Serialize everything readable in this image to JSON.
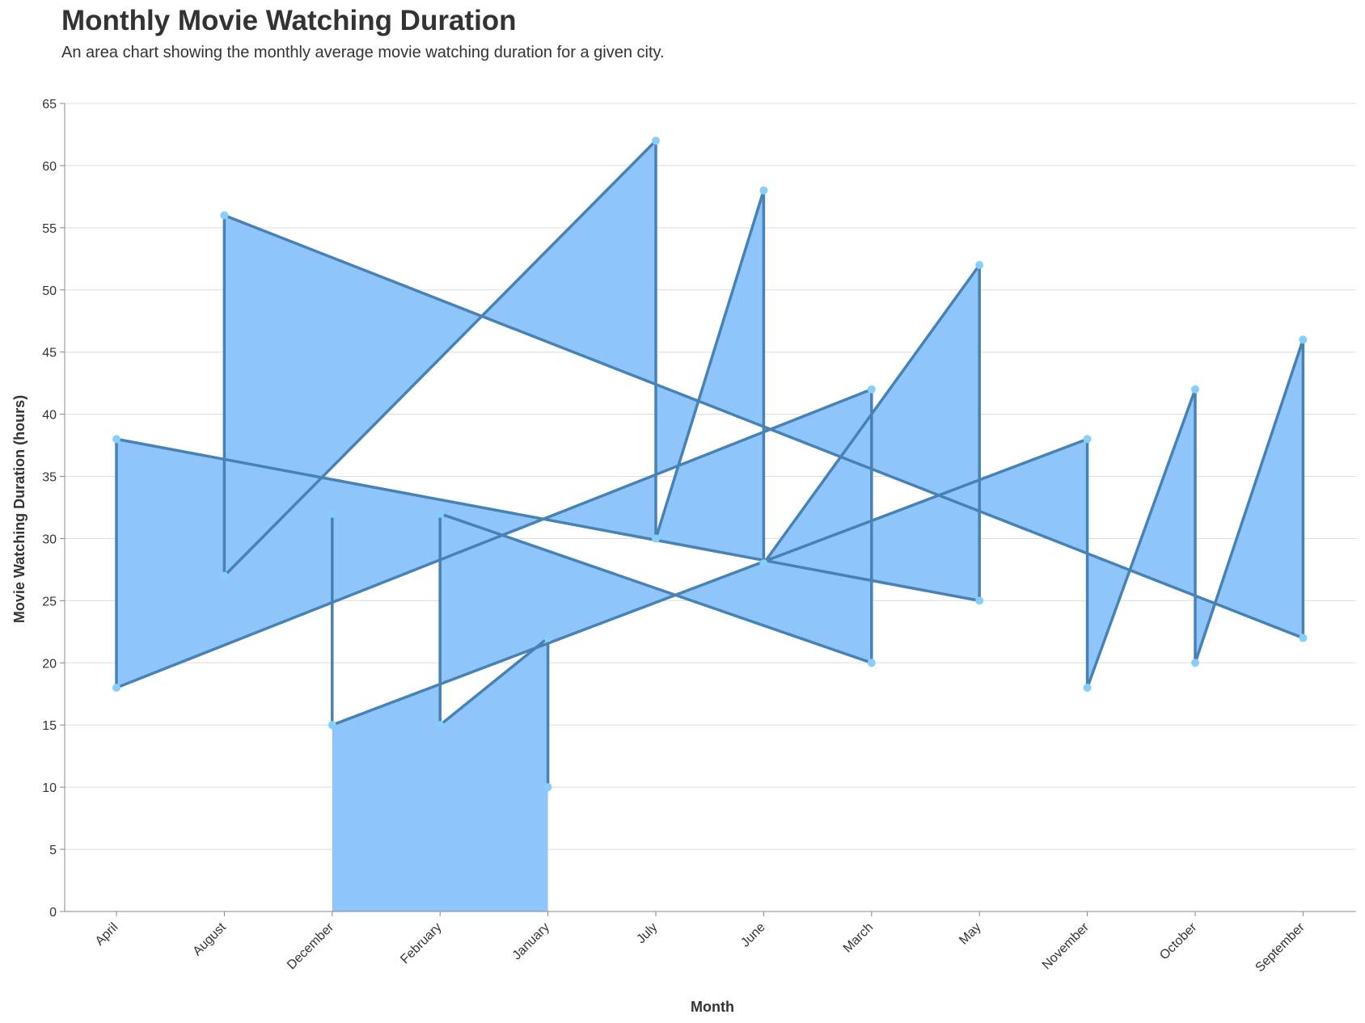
{
  "chart_data": {
    "type": "area",
    "title": "Monthly Movie Watching Duration",
    "subtitle": "An area chart showing the monthly average movie watching duration for a given city.",
    "xlabel": "Month",
    "ylabel": "Movie Watching Duration (hours)",
    "ylim": [
      0,
      65
    ],
    "y_ticks": [
      0,
      5,
      10,
      15,
      20,
      25,
      30,
      35,
      40,
      45,
      50,
      55,
      60,
      65
    ],
    "grid": true,
    "categories": [
      "April",
      "August",
      "December",
      "February",
      "January",
      "July",
      "June",
      "March",
      "May",
      "November",
      "October",
      "September"
    ],
    "points": [
      {
        "month": "January",
        "value": 10
      },
      {
        "month": "January",
        "value": 22
      },
      {
        "month": "February",
        "value": 15
      },
      {
        "month": "February",
        "value": 32
      },
      {
        "month": "March",
        "value": 20
      },
      {
        "month": "March",
        "value": 42
      },
      {
        "month": "April",
        "value": 18
      },
      {
        "month": "April",
        "value": 38
      },
      {
        "month": "May",
        "value": 25
      },
      {
        "month": "May",
        "value": 52
      },
      {
        "month": "June",
        "value": 28
      },
      {
        "month": "June",
        "value": 58
      },
      {
        "month": "July",
        "value": 30
      },
      {
        "month": "July",
        "value": 62
      },
      {
        "month": "August",
        "value": 27
      },
      {
        "month": "August",
        "value": 56
      },
      {
        "month": "September",
        "value": 22
      },
      {
        "month": "September",
        "value": 46
      },
      {
        "month": "October",
        "value": 20
      },
      {
        "month": "October",
        "value": 42
      },
      {
        "month": "November",
        "value": 18
      },
      {
        "month": "November",
        "value": 38
      },
      {
        "month": "December",
        "value": 15
      },
      {
        "month": "December",
        "value": 32
      }
    ],
    "colors": {
      "area_fill": "#90c5fc",
      "line": "#4682b4",
      "point": "#87cefa",
      "grid": "#dddddd",
      "axis": "#888888",
      "text": "#333333"
    }
  }
}
